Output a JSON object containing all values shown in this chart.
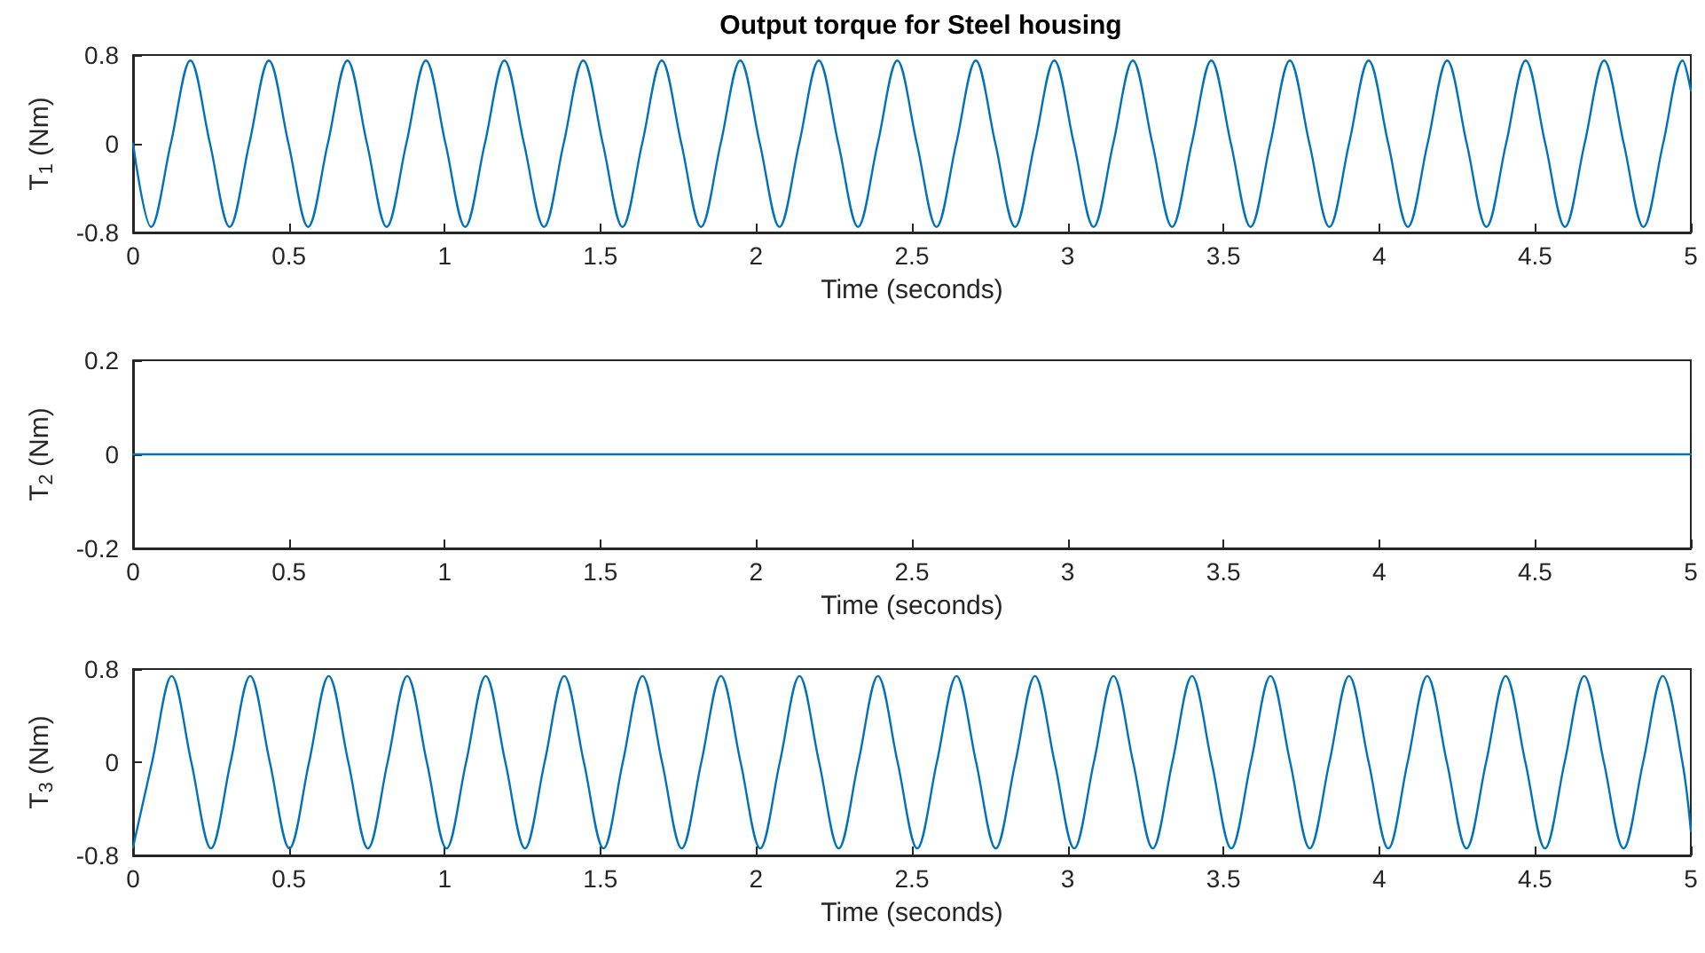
{
  "chart_data": [
    {
      "type": "line",
      "title": "Output torque for Steel housing",
      "xlabel": "Time (seconds)",
      "ylabel": "T$_{1}$ (Nm)",
      "xlim": [
        0,
        5
      ],
      "xticks": [
        0,
        0.5,
        1,
        1.5,
        2,
        2.5,
        3,
        3.5,
        4,
        4.5,
        5
      ],
      "ylim": [
        -0.8,
        0.8
      ],
      "yticks": [
        -0.8,
        0,
        0.8
      ],
      "grid": false,
      "line_style": "solid",
      "series": [
        {
          "color": "#0072bd",
          "x": [
            0,
            0.058,
            0.121,
            0.184,
            0.247,
            0.31,
            0.373,
            0.436,
            0.499,
            0.562,
            0.625,
            0.688,
            0.751,
            0.814,
            0.877,
            0.94,
            1.003,
            1.066,
            1.129,
            1.192,
            1.255,
            1.319,
            1.382,
            1.445,
            1.508,
            1.571,
            1.634,
            1.697,
            1.76,
            1.823,
            1.886,
            1.949,
            2.012,
            2.075,
            2.138,
            2.201,
            2.264,
            2.327,
            2.39,
            2.453,
            2.516,
            2.579,
            2.642,
            2.705,
            2.768,
            2.831,
            2.894,
            2.957,
            3.02,
            3.083,
            3.146,
            3.209,
            3.272,
            3.335,
            3.398,
            3.461,
            3.524,
            3.587,
            3.65,
            3.713,
            3.776,
            3.84,
            3.903,
            3.966,
            4.029,
            4.092,
            4.155,
            4.218,
            4.281,
            4.344,
            4.407,
            4.47,
            4.533,
            4.596,
            4.659,
            4.722,
            4.785,
            4.848,
            4.911,
            4.974,
            5
          ],
          "values": [
            0,
            -0.75,
            0,
            0.75,
            0,
            -0.75,
            0,
            0.75,
            0,
            -0.75,
            0,
            0.75,
            0,
            -0.75,
            0,
            0.75,
            0,
            -0.75,
            0,
            0.75,
            0,
            -0.75,
            0,
            0.75,
            0,
            -0.75,
            0,
            0.75,
            0,
            -0.75,
            0,
            0.75,
            0,
            -0.75,
            0,
            0.75,
            0,
            -0.75,
            0,
            0.75,
            0,
            -0.75,
            0,
            0.75,
            0,
            -0.75,
            0,
            0.75,
            0,
            -0.75,
            0,
            0.75,
            0,
            -0.75,
            0,
            0.75,
            0,
            -0.75,
            0,
            0.75,
            0,
            -0.75,
            0,
            0.75,
            0,
            -0.75,
            0,
            0.75,
            0,
            -0.75,
            0,
            0.75,
            0,
            -0.75,
            0,
            0.75,
            0,
            -0.75,
            0,
            0.75,
            0.48
          ]
        }
      ]
    },
    {
      "type": "line",
      "xlabel": "Time (seconds)",
      "ylabel": "T$_{2}$ (Nm)",
      "xlim": [
        0,
        5
      ],
      "xticks": [
        0,
        0.5,
        1,
        1.5,
        2,
        2.5,
        3,
        3.5,
        4,
        4.5,
        5
      ],
      "ylim": [
        -0.2,
        0.2
      ],
      "yticks": [
        -0.2,
        0,
        0.2
      ],
      "grid": false,
      "line_style": "solid",
      "series": [
        {
          "color": "#0072bd",
          "x": [
            0,
            5
          ],
          "values": [
            0,
            0
          ]
        }
      ]
    },
    {
      "type": "line",
      "xlabel": "Time (seconds)",
      "ylabel": "T$_{3}$ (Nm)",
      "xlim": [
        0,
        5
      ],
      "xticks": [
        0,
        0.5,
        1,
        1.5,
        2,
        2.5,
        3,
        3.5,
        4,
        4.5,
        5
      ],
      "ylim": [
        -0.8,
        0.8
      ],
      "yticks": [
        -0.8,
        0,
        0.8
      ],
      "grid": false,
      "line_style": "solid",
      "series": [
        {
          "color": "#0072bd",
          "x": [
            0,
            0.061,
            0.124,
            0.187,
            0.25,
            0.313,
            0.376,
            0.439,
            0.502,
            0.565,
            0.628,
            0.691,
            0.754,
            0.817,
            0.88,
            0.943,
            1.006,
            1.069,
            1.132,
            1.195,
            1.258,
            1.321,
            1.384,
            1.447,
            1.51,
            1.572,
            1.635,
            1.698,
            1.761,
            1.824,
            1.887,
            1.95,
            2.013,
            2.076,
            2.139,
            2.202,
            2.265,
            2.328,
            2.391,
            2.454,
            2.517,
            2.58,
            2.643,
            2.706,
            2.769,
            2.832,
            2.895,
            2.958,
            3.021,
            3.084,
            3.147,
            3.21,
            3.273,
            3.336,
            3.399,
            3.462,
            3.525,
            3.588,
            3.651,
            3.714,
            3.777,
            3.84,
            3.903,
            3.966,
            4.029,
            4.091,
            4.154,
            4.217,
            4.28,
            4.343,
            4.406,
            4.469,
            4.532,
            4.595,
            4.658,
            4.721,
            4.784,
            4.847,
            4.91,
            4.973,
            5
          ],
          "values": [
            -0.73,
            0,
            0.74,
            0,
            -0.74,
            0,
            0.74,
            0,
            -0.74,
            0,
            0.74,
            0,
            -0.74,
            0,
            0.74,
            0,
            -0.74,
            0,
            0.74,
            0,
            -0.74,
            0,
            0.74,
            0,
            -0.74,
            0,
            0.74,
            0,
            -0.74,
            0,
            0.74,
            0,
            -0.74,
            0,
            0.74,
            0,
            -0.74,
            0,
            0.74,
            0,
            -0.74,
            0,
            0.74,
            0,
            -0.74,
            0,
            0.74,
            0,
            -0.74,
            0,
            0.74,
            0,
            -0.74,
            0,
            0.74,
            0,
            -0.74,
            0,
            0.74,
            0,
            -0.74,
            0,
            0.74,
            0,
            -0.74,
            0,
            0.74,
            0,
            -0.74,
            0,
            0.74,
            0,
            -0.74,
            0,
            0.74,
            0,
            -0.74,
            0,
            0.74,
            0,
            -0.59
          ]
        }
      ]
    }
  ]
}
